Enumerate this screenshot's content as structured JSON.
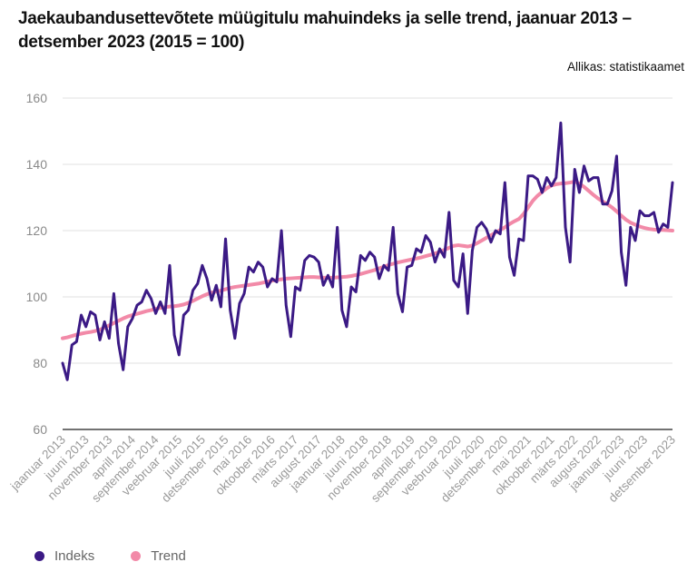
{
  "title": "Jaekaubandusettevõtete müügitulu mahuindeks ja selle trend, jaanuar 2013 – detsember 2023 (2015 = 100)",
  "source": "Allikas: statistikaamet",
  "colors": {
    "index": "#3b1a85",
    "trend": "#f28aa8",
    "grid": "#e2e2e2",
    "axis": "#444444"
  },
  "legend": [
    {
      "name": "Indeks",
      "color": "#3b1a85"
    },
    {
      "name": "Trend",
      "color": "#f28aa8"
    }
  ],
  "chart_data": {
    "type": "line",
    "title": "Jaekaubandusettevõtete müügitulu mahuindeks ja selle trend, jaanuar 2013 – detsember 2023 (2015 = 100)",
    "xlabel": "",
    "ylabel": "",
    "ylim": [
      60,
      160
    ],
    "yticks": [
      60,
      80,
      100,
      120,
      140,
      160
    ],
    "grid": true,
    "legend_position": "bottom-left",
    "x_start": "jaanuar 2013",
    "x_end": "detsember 2023",
    "n_months": 132,
    "xtick_labels": [
      {
        "i": 0,
        "label": "jaanuar 2013"
      },
      {
        "i": 5,
        "label": "juuni 2013"
      },
      {
        "i": 10,
        "label": "november 2013"
      },
      {
        "i": 15,
        "label": "aprill 2014"
      },
      {
        "i": 20,
        "label": "september 2014"
      },
      {
        "i": 25,
        "label": "veebruar 2015"
      },
      {
        "i": 30,
        "label": "juuli 2015"
      },
      {
        "i": 35,
        "label": "detsember 2015"
      },
      {
        "i": 40,
        "label": "mai 2016"
      },
      {
        "i": 45,
        "label": "oktoober 2016"
      },
      {
        "i": 50,
        "label": "märts 2017"
      },
      {
        "i": 55,
        "label": "august 2017"
      },
      {
        "i": 60,
        "label": "jaanuar 2018"
      },
      {
        "i": 65,
        "label": "juuni 2018"
      },
      {
        "i": 70,
        "label": "november 2018"
      },
      {
        "i": 75,
        "label": "aprill 2019"
      },
      {
        "i": 80,
        "label": "september 2019"
      },
      {
        "i": 85,
        "label": "veebruar 2020"
      },
      {
        "i": 90,
        "label": "juuli 2020"
      },
      {
        "i": 95,
        "label": "detsember 2020"
      },
      {
        "i": 100,
        "label": "mai 2021"
      },
      {
        "i": 105,
        "label": "oktoober 2021"
      },
      {
        "i": 110,
        "label": "märts 2022"
      },
      {
        "i": 115,
        "label": "august 2022"
      },
      {
        "i": 120,
        "label": "jaanuar 2023"
      },
      {
        "i": 125,
        "label": "juuni 2023"
      },
      {
        "i": 131,
        "label": "detsember 2023"
      }
    ],
    "series": [
      {
        "name": "Indeks",
        "values": [
          80.0,
          75.0,
          85.5,
          86.5,
          94.5,
          91.0,
          95.5,
          94.5,
          87.0,
          92.5,
          87.5,
          101.0,
          86.0,
          78.0,
          91.0,
          93.5,
          97.5,
          98.5,
          102.0,
          99.5,
          95.0,
          98.5,
          95.0,
          109.5,
          88.5,
          82.5,
          94.5,
          96.0,
          102.0,
          104.0,
          109.5,
          105.5,
          99.0,
          103.5,
          97.0,
          117.5,
          96.0,
          87.5,
          98.0,
          101.0,
          109.0,
          107.5,
          110.5,
          109.0,
          103.0,
          105.5,
          104.5,
          120.0,
          97.5,
          88.0,
          103.0,
          102.0,
          111.0,
          112.5,
          112.0,
          110.5,
          103.5,
          106.5,
          103.0,
          121.0,
          96.0,
          91.0,
          103.0,
          101.5,
          112.5,
          111.0,
          113.5,
          112.0,
          105.5,
          109.5,
          108.0,
          121.0,
          101.0,
          95.5,
          109.0,
          109.5,
          114.5,
          113.5,
          118.5,
          116.5,
          110.5,
          114.5,
          112.0,
          125.5,
          105.0,
          103.0,
          113.0,
          95.0,
          114.0,
          121.0,
          122.5,
          120.5,
          116.5,
          120.0,
          119.0,
          134.5,
          112.0,
          106.5,
          117.5,
          117.0,
          136.5,
          136.5,
          135.5,
          131.5,
          136.0,
          133.5,
          136.0,
          152.5,
          121.0,
          110.5,
          138.5,
          131.5,
          139.5,
          135.0,
          136.0,
          136.0,
          128.0,
          128.0,
          132.0,
          142.5,
          113.5,
          103.5,
          121.0,
          117.0,
          126.0,
          124.5,
          124.5,
          125.5,
          119.5,
          122.0,
          121.0,
          134.5
        ]
      },
      {
        "name": "Trend",
        "values": [
          87.5,
          87.8,
          88.2,
          88.6,
          88.9,
          89.2,
          89.4,
          89.7,
          90.1,
          90.7,
          91.4,
          92.1,
          92.8,
          93.5,
          94.1,
          94.5,
          94.9,
          95.3,
          95.7,
          96.0,
          96.4,
          96.7,
          96.9,
          97.1,
          97.2,
          97.4,
          97.7,
          98.2,
          98.8,
          99.5,
          100.2,
          100.8,
          101.3,
          101.6,
          101.9,
          102.3,
          102.7,
          103.0,
          103.2,
          103.4,
          103.6,
          103.8,
          104.0,
          104.3,
          104.6,
          104.9,
          105.1,
          105.3,
          105.5,
          105.6,
          105.7,
          105.8,
          105.9,
          106.0,
          106.0,
          105.9,
          105.8,
          105.8,
          105.8,
          105.9,
          106.0,
          106.1,
          106.3,
          106.6,
          106.9,
          107.3,
          107.7,
          108.1,
          108.6,
          109.1,
          109.6,
          110.0,
          110.4,
          110.7,
          111.0,
          111.3,
          111.6,
          111.9,
          112.3,
          112.7,
          113.1,
          113.6,
          114.2,
          114.8,
          115.4,
          115.6,
          115.4,
          115.2,
          115.5,
          116.2,
          117.0,
          117.8,
          118.6,
          119.4,
          120.2,
          121.0,
          122.0,
          122.8,
          123.5,
          125.0,
          127.0,
          129.0,
          130.5,
          131.7,
          132.8,
          133.6,
          134.0,
          134.2,
          134.3,
          134.5,
          134.8,
          134.2,
          133.2,
          132.0,
          130.8,
          129.7,
          128.8,
          128.0,
          127.0,
          125.8,
          124.5,
          123.3,
          122.4,
          121.8,
          121.2,
          120.8,
          120.5,
          120.3,
          120.2,
          120.2,
          120.1,
          120.0
        ]
      }
    ]
  }
}
